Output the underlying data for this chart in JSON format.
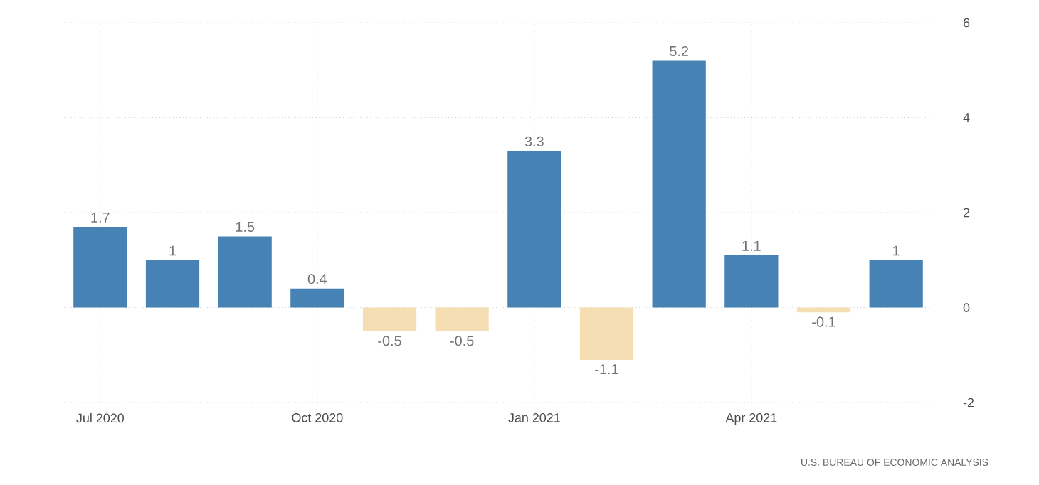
{
  "chart_data": {
    "type": "bar",
    "categories": [
      "Jul 2020",
      null,
      null,
      "Oct 2020",
      null,
      null,
      "Jan 2021",
      null,
      null,
      "Apr 2021",
      null,
      null
    ],
    "values": [
      1.7,
      1,
      1.5,
      0.4,
      -0.5,
      -0.5,
      3.3,
      -1.1,
      5.2,
      1.1,
      -0.1,
      1
    ],
    "colors": [
      "#4682b4",
      "#4682b4",
      "#4682b4",
      "#4682b4",
      "#f5deb3",
      "#f5deb3",
      "#4682b4",
      "#f5deb3",
      "#4682b4",
      "#4682b4",
      "#f5deb3",
      "#4682b4"
    ],
    "ylim": [
      -2,
      6
    ],
    "yticks": [
      -2,
      0,
      2,
      4,
      6
    ],
    "grid": true,
    "data_labels": true,
    "annotations": [
      "U.S. BUREAU OF ECONOMIC ANALYSIS"
    ]
  }
}
